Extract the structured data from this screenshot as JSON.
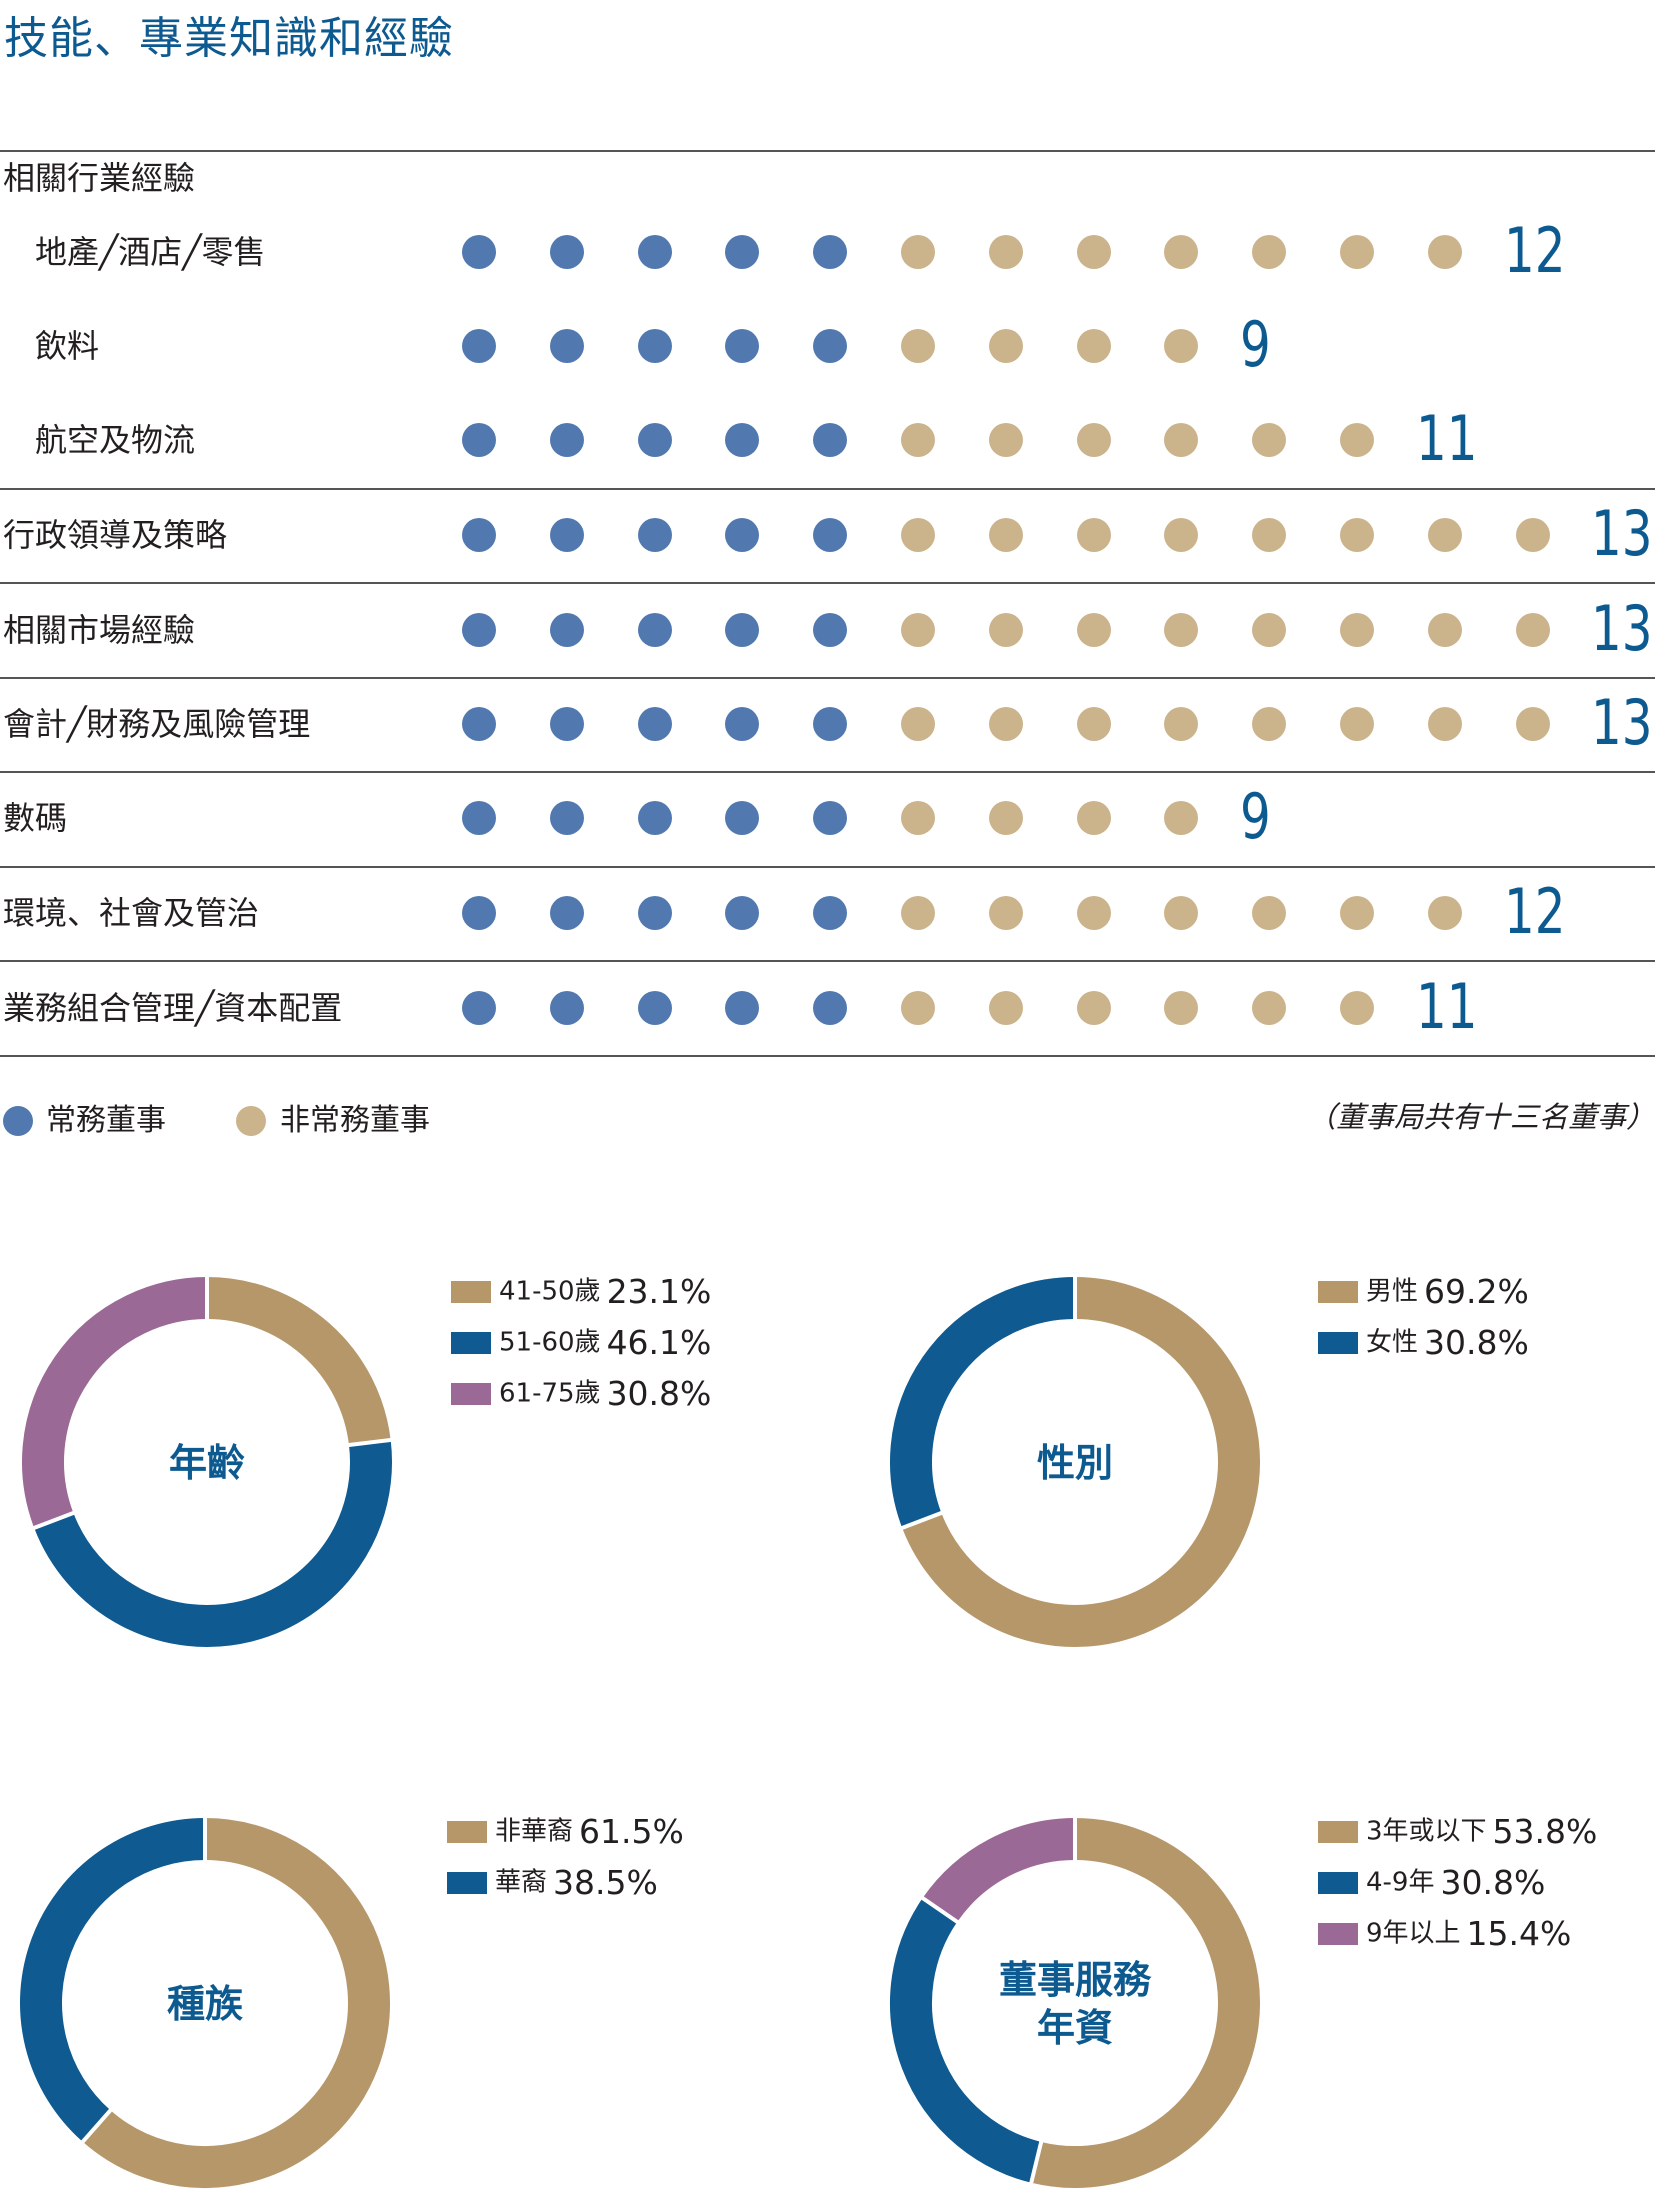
{
  "title": "技能、專業知識和經驗",
  "colors": {
    "executive": "#5179b0",
    "non_executive": "#cbb48c",
    "teal": "#0d5a91",
    "c_gold": "#b5976a",
    "c_blue": "#0e5a91",
    "c_purple": "#9a6995"
  },
  "chart_data": [
    {
      "type": "dot-matrix",
      "section_header": "相關行業經驗",
      "rows": [
        {
          "label": "地產╱酒店╱零售",
          "executive": 5,
          "non_executive": 7,
          "total": "12"
        },
        {
          "label": "飲料",
          "executive": 5,
          "non_executive": 4,
          "total": "9"
        },
        {
          "label": "航空及物流",
          "executive": 5,
          "non_executive": 6,
          "total": "11"
        },
        {
          "label": "行政領導及策略",
          "executive": 5,
          "non_executive": 8,
          "total": "13"
        },
        {
          "label": "相關市場經驗",
          "executive": 5,
          "non_executive": 8,
          "total": "13"
        },
        {
          "label": "會計╱財務及風險管理",
          "executive": 5,
          "non_executive": 8,
          "total": "13"
        },
        {
          "label": "數碼",
          "executive": 5,
          "non_executive": 4,
          "total": "9"
        },
        {
          "label": "環境、社會及管治",
          "executive": 5,
          "non_executive": 7,
          "total": "12"
        },
        {
          "label": "業務組合管理╱資本配置",
          "executive": 5,
          "non_executive": 6,
          "total": "11"
        }
      ],
      "legend": {
        "executive": "常務董事",
        "non_executive": "非常務董事"
      },
      "note": "（董事局共有十三名董事）"
    },
    {
      "type": "pie",
      "title": "年齡",
      "slices": [
        {
          "label": "41-50歲",
          "value": 23.1,
          "display": "23.1%",
          "color": "#b5976a"
        },
        {
          "label": "51-60歲",
          "value": 46.1,
          "display": "46.1%",
          "color": "#0e5a91"
        },
        {
          "label": "61-75歲",
          "value": 30.8,
          "display": "30.8%",
          "color": "#9a6995"
        }
      ]
    },
    {
      "type": "pie",
      "title": "性別",
      "slices": [
        {
          "label": "男性",
          "value": 69.2,
          "display": "69.2%",
          "color": "#b5976a"
        },
        {
          "label": "女性",
          "value": 30.8,
          "display": "30.8%",
          "color": "#0e5a91"
        }
      ]
    },
    {
      "type": "pie",
      "title": "種族",
      "slices": [
        {
          "label": "非華裔",
          "value": 61.5,
          "display": "61.5%",
          "color": "#b5976a"
        },
        {
          "label": "華裔",
          "value": 38.5,
          "display": "38.5%",
          "color": "#0e5a91"
        }
      ]
    },
    {
      "type": "pie",
      "title": "董事服務年資",
      "title_lines": [
        "董事服務",
        "年資"
      ],
      "slices": [
        {
          "label": "3年或以下",
          "value": 53.8,
          "display": "53.8%",
          "color": "#b5976a"
        },
        {
          "label": "4-9年",
          "value": 30.8,
          "display": "30.8%",
          "color": "#0e5a91"
        },
        {
          "label": "9年以上",
          "value": 15.4,
          "display": "15.4%",
          "color": "#9a6995"
        }
      ]
    }
  ]
}
